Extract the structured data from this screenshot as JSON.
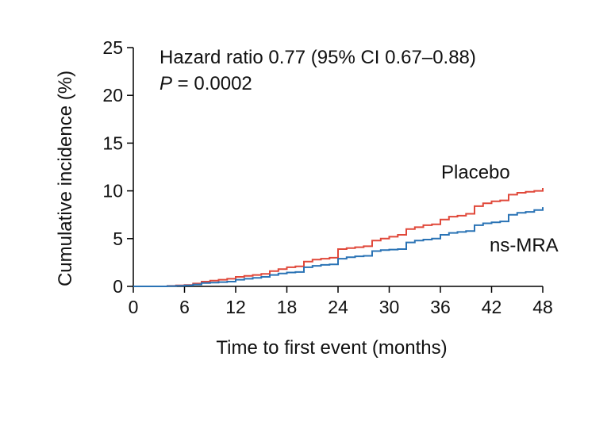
{
  "chart_data": {
    "type": "line",
    "title": "",
    "xlabel": "Time to first event (months)",
    "ylabel": "Cumulative incidence (%)",
    "xlim": [
      0,
      48
    ],
    "ylim": [
      0,
      25
    ],
    "xticks": [
      0,
      6,
      12,
      18,
      24,
      30,
      36,
      42,
      48
    ],
    "yticks": [
      0,
      5,
      10,
      15,
      20,
      25
    ],
    "grid": false,
    "legend": "inline labels",
    "annotations": {
      "hazard_ratio": "Hazard ratio 0.77 (95% CI 0.67–0.88)",
      "p_italic": "P",
      "p_rest": " = 0.0002"
    },
    "series": [
      {
        "name": "Placebo",
        "color": "#e0483a",
        "step": true,
        "points": [
          [
            0,
            0
          ],
          [
            3,
            0
          ],
          [
            4,
            0.05
          ],
          [
            5,
            0.1
          ],
          [
            6,
            0.15
          ],
          [
            7,
            0.3
          ],
          [
            8,
            0.5
          ],
          [
            9,
            0.6
          ],
          [
            10,
            0.7
          ],
          [
            11,
            0.8
          ],
          [
            12,
            1.0
          ],
          [
            13,
            1.1
          ],
          [
            14,
            1.2
          ],
          [
            15,
            1.3
          ],
          [
            16,
            1.6
          ],
          [
            17,
            1.8
          ],
          [
            18,
            2.0
          ],
          [
            19,
            2.1
          ],
          [
            20,
            2.6
          ],
          [
            21,
            2.8
          ],
          [
            22,
            2.9
          ],
          [
            23,
            3.0
          ],
          [
            24,
            3.9
          ],
          [
            25,
            4.0
          ],
          [
            26,
            4.1
          ],
          [
            27,
            4.2
          ],
          [
            28,
            4.8
          ],
          [
            29,
            5.0
          ],
          [
            30,
            5.2
          ],
          [
            31,
            5.4
          ],
          [
            32,
            6.0
          ],
          [
            33,
            6.2
          ],
          [
            34,
            6.4
          ],
          [
            35,
            6.5
          ],
          [
            36,
            7.0
          ],
          [
            37,
            7.3
          ],
          [
            38,
            7.4
          ],
          [
            39,
            7.6
          ],
          [
            40,
            8.4
          ],
          [
            41,
            8.7
          ],
          [
            42,
            8.9
          ],
          [
            43,
            9.0
          ],
          [
            44,
            9.6
          ],
          [
            45,
            9.8
          ],
          [
            46,
            9.9
          ],
          [
            47,
            10.0
          ],
          [
            48,
            10.3
          ]
        ]
      },
      {
        "name": "ns-MRA",
        "color": "#2a73b5",
        "step": true,
        "points": [
          [
            0,
            0
          ],
          [
            3,
            0
          ],
          [
            4,
            0.03
          ],
          [
            5,
            0.06
          ],
          [
            6,
            0.1
          ],
          [
            7,
            0.2
          ],
          [
            8,
            0.35
          ],
          [
            9,
            0.4
          ],
          [
            10,
            0.45
          ],
          [
            11,
            0.5
          ],
          [
            12,
            0.7
          ],
          [
            13,
            0.8
          ],
          [
            14,
            0.9
          ],
          [
            15,
            1.0
          ],
          [
            16,
            1.2
          ],
          [
            17,
            1.35
          ],
          [
            18,
            1.45
          ],
          [
            19,
            1.5
          ],
          [
            20,
            2.0
          ],
          [
            21,
            2.15
          ],
          [
            22,
            2.25
          ],
          [
            23,
            2.3
          ],
          [
            24,
            2.9
          ],
          [
            25,
            3.05
          ],
          [
            26,
            3.15
          ],
          [
            27,
            3.2
          ],
          [
            28,
            3.7
          ],
          [
            29,
            3.8
          ],
          [
            30,
            3.85
          ],
          [
            31,
            3.9
          ],
          [
            32,
            4.6
          ],
          [
            33,
            4.8
          ],
          [
            34,
            4.9
          ],
          [
            35,
            5.0
          ],
          [
            36,
            5.4
          ],
          [
            37,
            5.6
          ],
          [
            38,
            5.7
          ],
          [
            39,
            5.8
          ],
          [
            40,
            6.4
          ],
          [
            41,
            6.6
          ],
          [
            42,
            6.7
          ],
          [
            43,
            6.8
          ],
          [
            44,
            7.5
          ],
          [
            45,
            7.7
          ],
          [
            46,
            7.8
          ],
          [
            47,
            8.0
          ],
          [
            48,
            8.3
          ]
        ]
      }
    ]
  }
}
